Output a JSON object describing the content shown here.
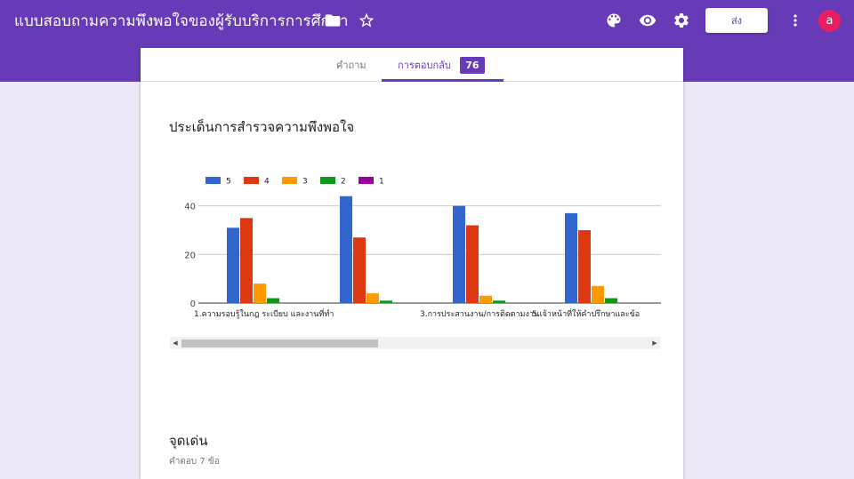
{
  "header": {
    "title": "แบบสอบถามความพึงพอใจของผู้รับบริการการศึกษา",
    "send_label": "ส่ง",
    "avatar_letter": "a",
    "bg_color": "#673ab7"
  },
  "tabs": {
    "questions_label": "คำถาม",
    "responses_label": "การตอบกลับ",
    "responses_count": "76"
  },
  "section1": {
    "title": "ประเด็นการสำรวจความพึงพอใจ"
  },
  "chart_data": {
    "type": "bar",
    "categories": [
      "1.ความรอบรู้ในกฎ ระเบียบ และงานที่ทำ",
      "",
      "3.การประสานงาน/การติดตามงาน",
      "5.เจ้าหน้าที่ให้คำปรึกษาและข้อ"
    ],
    "series": [
      {
        "name": "5",
        "color": "#3366cc",
        "values": [
          31,
          44,
          40,
          37
        ]
      },
      {
        "name": "4",
        "color": "#dc3912",
        "values": [
          35,
          27,
          32,
          30
        ]
      },
      {
        "name": "3",
        "color": "#ff9900",
        "values": [
          8,
          4,
          3,
          7
        ]
      },
      {
        "name": "2",
        "color": "#109618",
        "values": [
          2,
          1,
          1,
          2
        ]
      },
      {
        "name": "1",
        "color": "#990099",
        "values": [
          0,
          0,
          0,
          0
        ]
      }
    ],
    "y_ticks": [
      "0",
      "20",
      "40"
    ],
    "ylim": [
      0,
      45
    ],
    "legend_position": "top-left",
    "grid": true
  },
  "section2": {
    "title": "จุดเด่น",
    "count_label": "คำตอบ 7 ข้อ"
  }
}
